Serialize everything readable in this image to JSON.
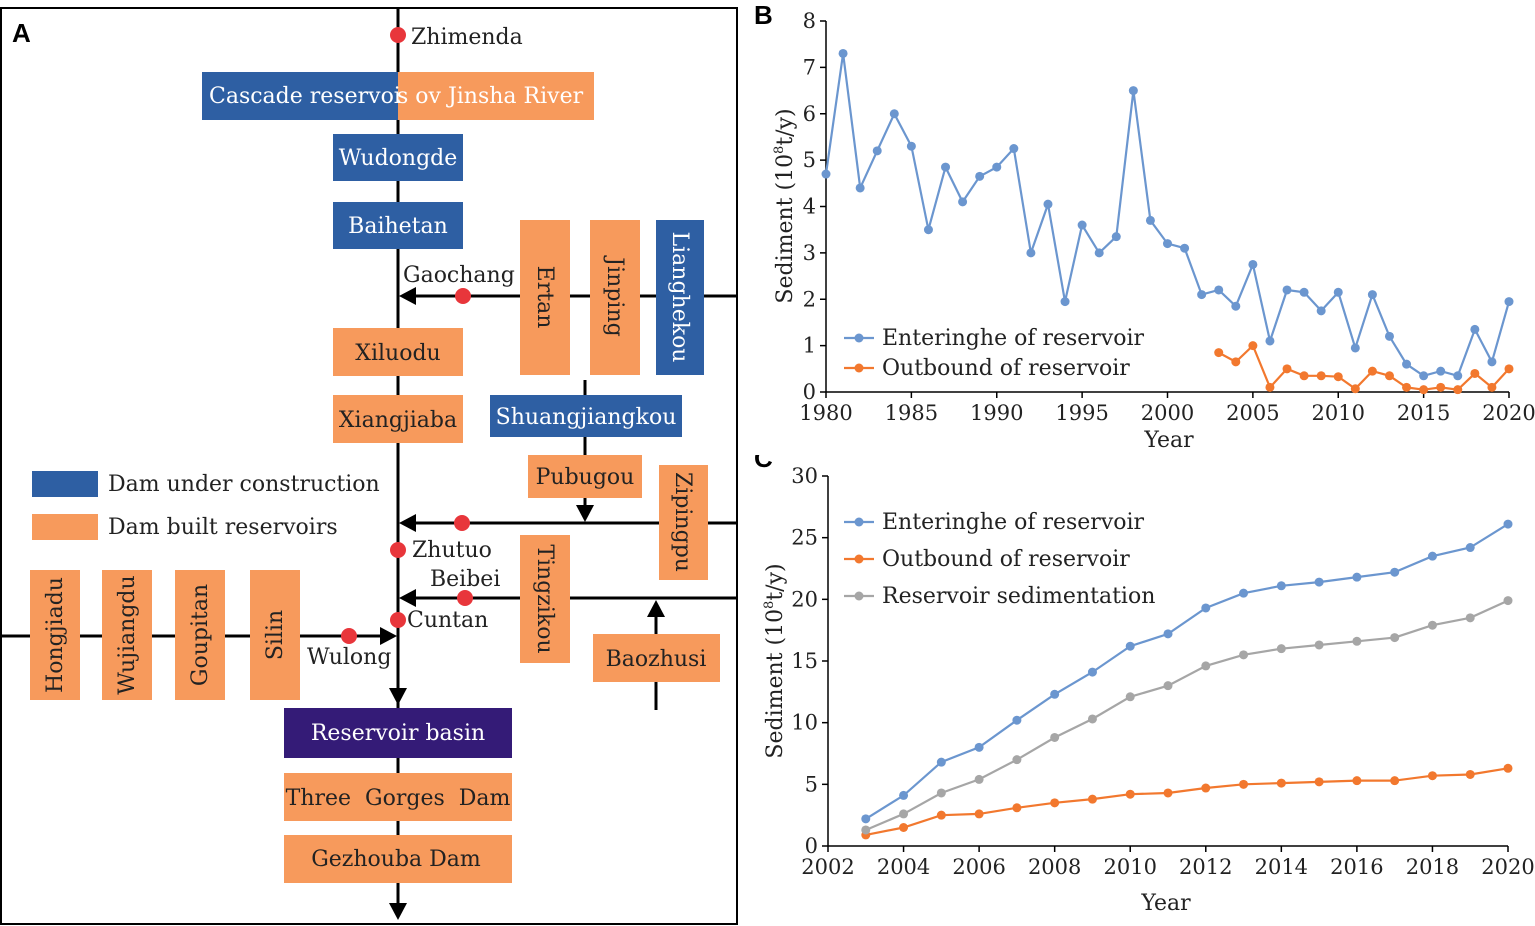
{
  "panelA": {
    "letter": "A",
    "stations": {
      "zhimenda": "Zhimenda",
      "gaochang": "Gaochang",
      "zhutuo": "Zhutuo",
      "beibei": "Beibei",
      "cuntan": "Cuntan",
      "wulong": "Wulong"
    },
    "cascade": {
      "part1": "Cascade reservoi",
      "part2": "s ov Jinsha River"
    },
    "dams": {
      "wudongde": "Wudongde",
      "baihetan": "Baihetan",
      "xiluodu": "Xiluodu",
      "xiangjiaba": "Xiangjiaba",
      "ertan": "Ertan",
      "jinping": "Jinping",
      "lianghekou": "Lianghekou",
      "shuangjiangkou": "Shuangjiangkou",
      "pubugou": "Pubugou",
      "zipingpu": "Zipingpu",
      "tingzikou": "Tingzikou",
      "baozhusi": "Baozhusi",
      "hongjiadu": "Hongjiadu",
      "wujiangdu": "Wujiangdu",
      "goupitan": "Goupitan",
      "silin": "Silin",
      "reservoir_basin": "Reservoir basin",
      "three_gorges": "Three  Gorges  Dam",
      "gezhouba": "Gezhouba Dam"
    },
    "legend": {
      "under_construction": "Dam under construction",
      "built": "Dam built reservoirs"
    },
    "colors": {
      "blue": "#2e5fa3",
      "orange": "#f79a5c",
      "purple": "#341b77",
      "station": "#e8363b"
    }
  },
  "chart_data": [
    {
      "type": "line",
      "panel": "B",
      "ylabel_main": "Sediment (10",
      "ylabel_sup": "8",
      "ylabel_tail": "t/y)",
      "xlabel": "Year",
      "xlim": [
        1980,
        2020
      ],
      "ylim": [
        0,
        8
      ],
      "xticks": [
        1980,
        1985,
        1990,
        1995,
        2000,
        2005,
        2010,
        2015,
        2020
      ],
      "yticks": [
        0,
        1,
        2,
        3,
        4,
        5,
        6,
        7,
        8
      ],
      "legend_position": "bottom-left",
      "series": [
        {
          "name": "Enteringhe of reservoir",
          "color": "#6b96cf",
          "x": [
            1980,
            1981,
            1982,
            1983,
            1984,
            1985,
            1986,
            1987,
            1988,
            1989,
            1990,
            1991,
            1992,
            1993,
            1994,
            1995,
            1996,
            1997,
            1998,
            1999,
            2000,
            2001,
            2002,
            2003,
            2004,
            2005,
            2006,
            2007,
            2008,
            2009,
            2010,
            2011,
            2012,
            2013,
            2014,
            2015,
            2016,
            2017,
            2018,
            2019,
            2020
          ],
          "y": [
            4.7,
            7.3,
            4.4,
            5.2,
            6.0,
            5.3,
            3.5,
            4.85,
            4.1,
            4.65,
            4.85,
            5.25,
            3.0,
            4.05,
            1.95,
            3.6,
            3.0,
            3.35,
            6.5,
            3.7,
            3.2,
            3.1,
            2.1,
            2.2,
            1.85,
            2.75,
            1.1,
            2.2,
            2.15,
            1.75,
            2.15,
            0.95,
            2.1,
            1.2,
            0.6,
            0.35,
            0.45,
            0.35,
            1.35,
            0.65,
            1.95
          ]
        },
        {
          "name": "Outbound of reservoir",
          "color": "#f2782e",
          "x": [
            2003,
            2004,
            2005,
            2006,
            2007,
            2008,
            2009,
            2010,
            2011,
            2012,
            2013,
            2014,
            2015,
            2016,
            2017,
            2018,
            2019,
            2020
          ],
          "y": [
            0.85,
            0.65,
            1.0,
            0.1,
            0.5,
            0.35,
            0.35,
            0.33,
            0.07,
            0.45,
            0.35,
            0.1,
            0.05,
            0.1,
            0.05,
            0.4,
            0.1,
            0.5
          ]
        }
      ]
    },
    {
      "type": "line",
      "panel": "C",
      "ylabel_main": "Sediment (10",
      "ylabel_sup": "8",
      "ylabel_tail": "t/y)",
      "xlabel": "Year",
      "xlim": [
        2002,
        2020
      ],
      "ylim": [
        0,
        30
      ],
      "xticks": [
        2002,
        2004,
        2006,
        2008,
        2010,
        2012,
        2014,
        2016,
        2018,
        2020
      ],
      "yticks": [
        0,
        5,
        10,
        15,
        20,
        25,
        30
      ],
      "legend_position": "top-left",
      "series": [
        {
          "name": "Enteringhe of reservoir",
          "color": "#6b96cf",
          "x": [
            2003,
            2004,
            2005,
            2006,
            2007,
            2008,
            2009,
            2010,
            2011,
            2012,
            2013,
            2014,
            2015,
            2016,
            2017,
            2018,
            2019,
            2020
          ],
          "y": [
            2.2,
            4.1,
            6.8,
            8.0,
            10.2,
            12.3,
            14.1,
            16.2,
            17.2,
            19.3,
            20.5,
            21.1,
            21.4,
            21.8,
            22.2,
            23.5,
            24.2,
            26.1
          ]
        },
        {
          "name": "Outbound of reservoir",
          "color": "#f2782e",
          "x": [
            2003,
            2004,
            2005,
            2006,
            2007,
            2008,
            2009,
            2010,
            2011,
            2012,
            2013,
            2014,
            2015,
            2016,
            2017,
            2018,
            2019,
            2020
          ],
          "y": [
            0.9,
            1.5,
            2.5,
            2.6,
            3.1,
            3.5,
            3.8,
            4.2,
            4.3,
            4.7,
            5.0,
            5.1,
            5.2,
            5.3,
            5.3,
            5.7,
            5.8,
            6.3
          ]
        },
        {
          "name": "Reservoir sedimentation",
          "color": "#a6a6a6",
          "x": [
            2003,
            2004,
            2005,
            2006,
            2007,
            2008,
            2009,
            2010,
            2011,
            2012,
            2013,
            2014,
            2015,
            2016,
            2017,
            2018,
            2019,
            2020
          ],
          "y": [
            1.3,
            2.6,
            4.3,
            5.4,
            7.0,
            8.8,
            10.3,
            12.1,
            13.0,
            14.6,
            15.5,
            16.0,
            16.3,
            16.6,
            16.9,
            17.9,
            18.5,
            19.9
          ]
        }
      ]
    }
  ]
}
